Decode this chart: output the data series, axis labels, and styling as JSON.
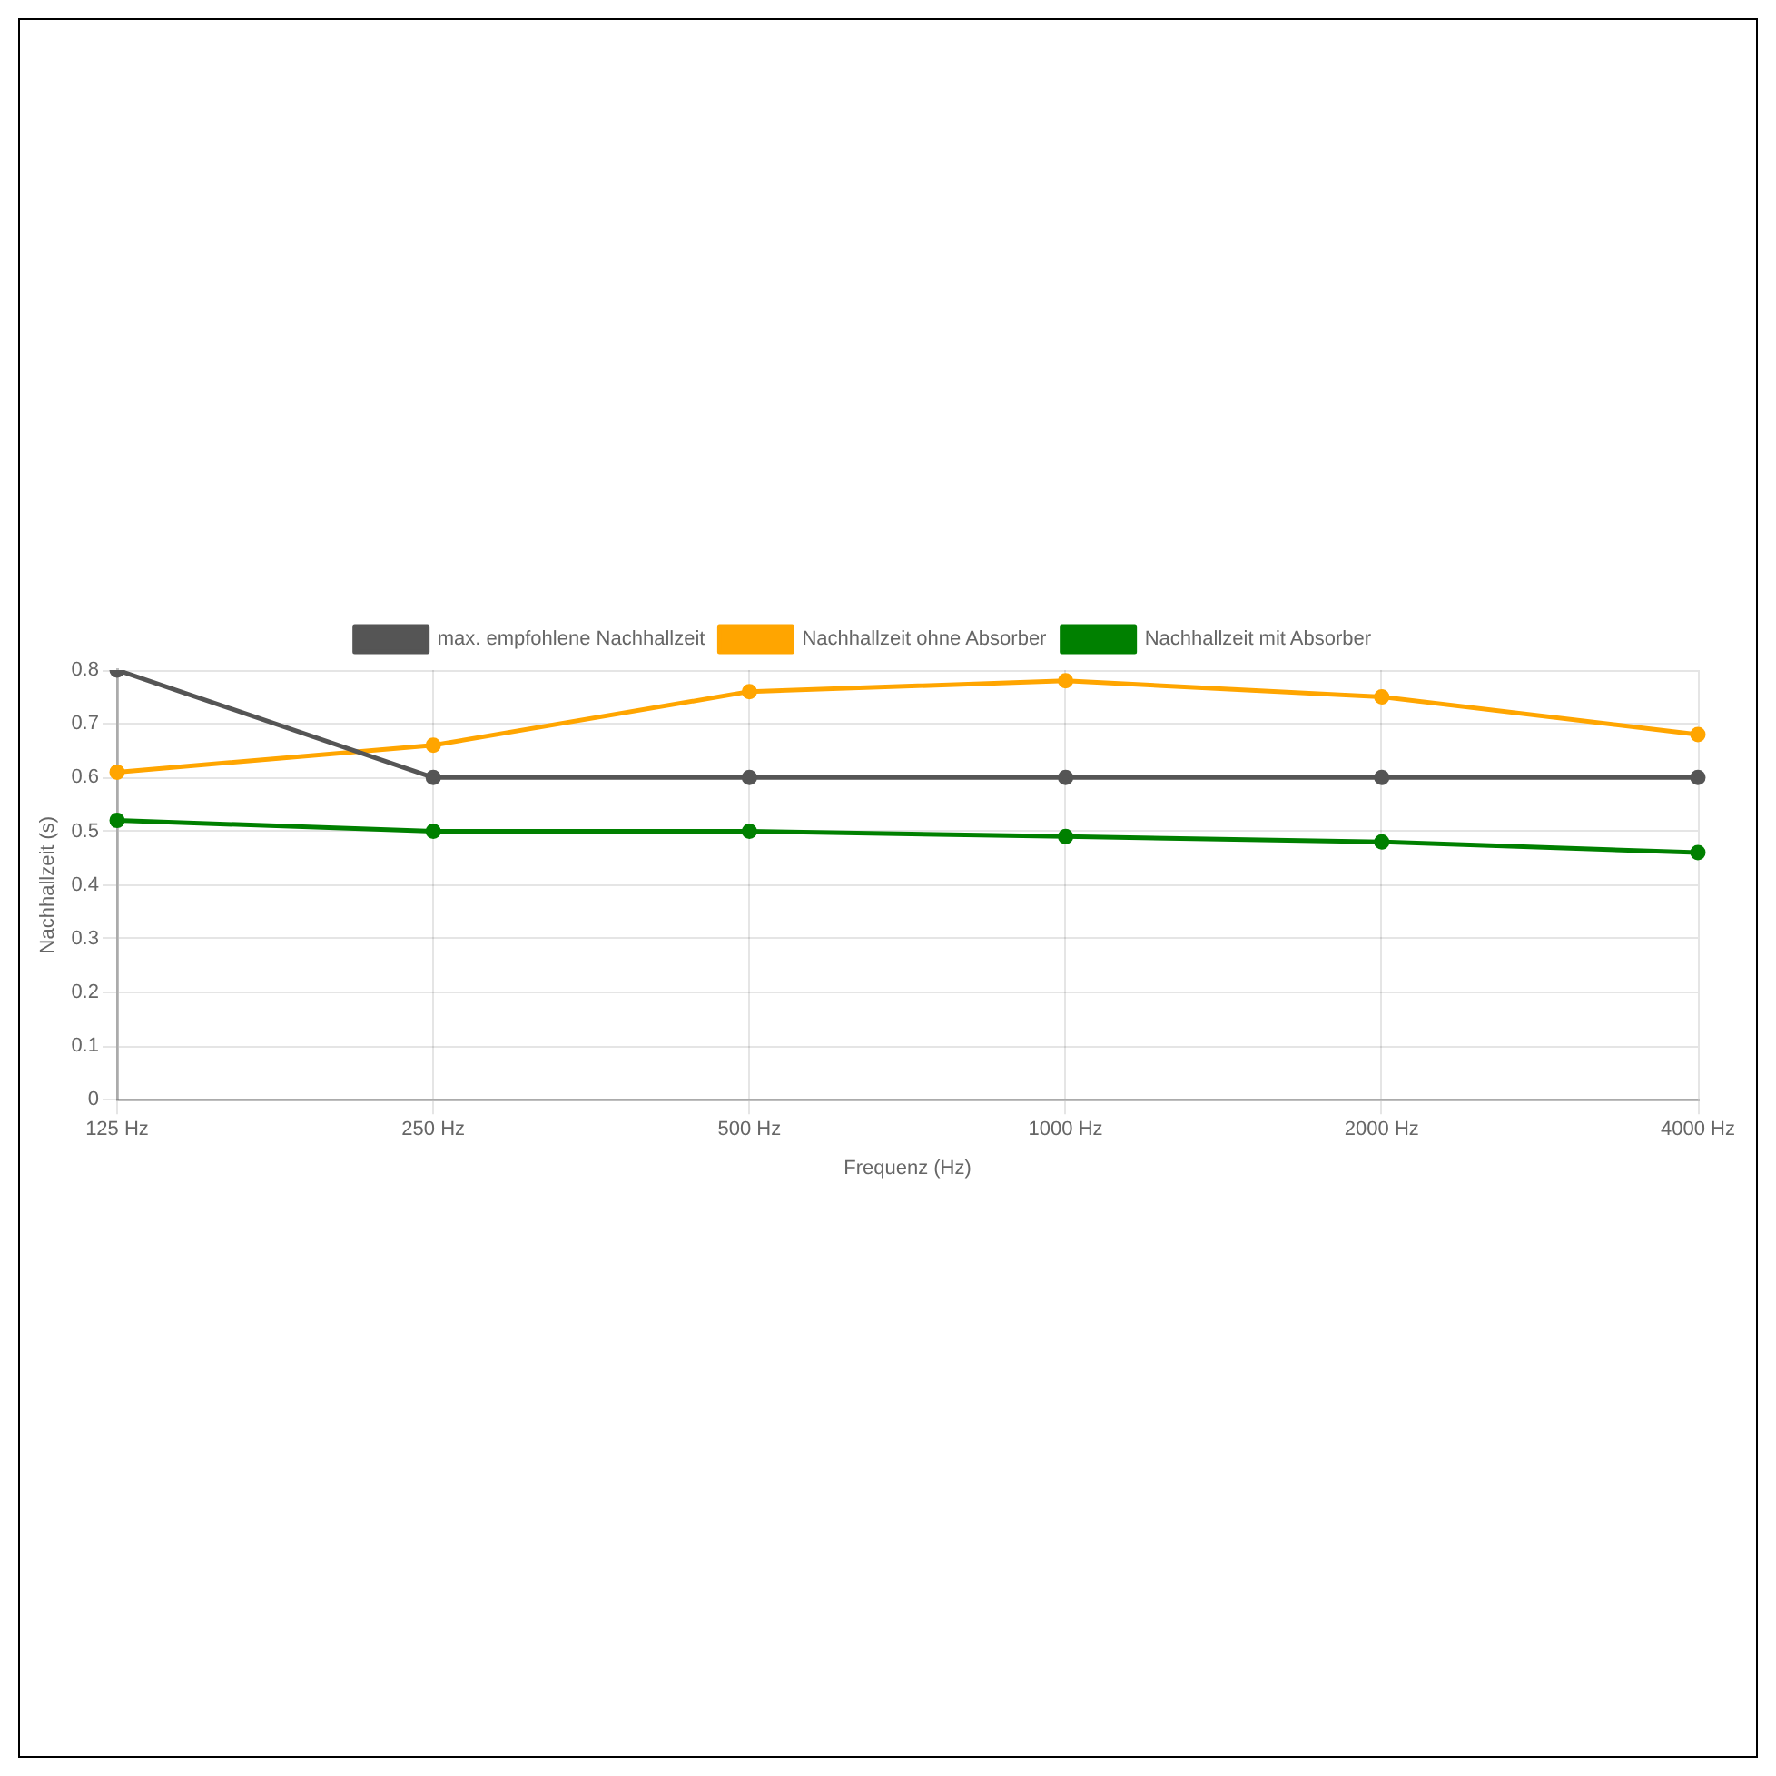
{
  "chart_data": {
    "type": "line",
    "xlabel": "Frequenz (Hz)",
    "ylabel": "Nachhallzeit (s)",
    "categories": [
      "125 Hz",
      "250 Hz",
      "500 Hz",
      "1000 Hz",
      "2000 Hz",
      "4000 Hz"
    ],
    "series": [
      {
        "name": "max. empfohlene Nachhallzeit",
        "color": "#555555",
        "values": [
          0.8,
          0.6,
          0.6,
          0.6,
          0.6,
          0.6
        ]
      },
      {
        "name": "Nachhallzeit ohne Absorber",
        "color": "#ffa500",
        "values": [
          0.61,
          0.66,
          0.76,
          0.78,
          0.75,
          0.68
        ]
      },
      {
        "name": "Nachhallzeit mit Absorber",
        "color": "#008000",
        "values": [
          0.52,
          0.5,
          0.5,
          0.49,
          0.48,
          0.46
        ]
      }
    ],
    "ylim": [
      0,
      0.8
    ],
    "yticks": [
      0,
      0.1,
      0.2,
      0.3,
      0.4,
      0.5,
      0.6,
      0.7,
      0.8
    ],
    "grid": true,
    "legend": "top",
    "marker": "circle"
  }
}
